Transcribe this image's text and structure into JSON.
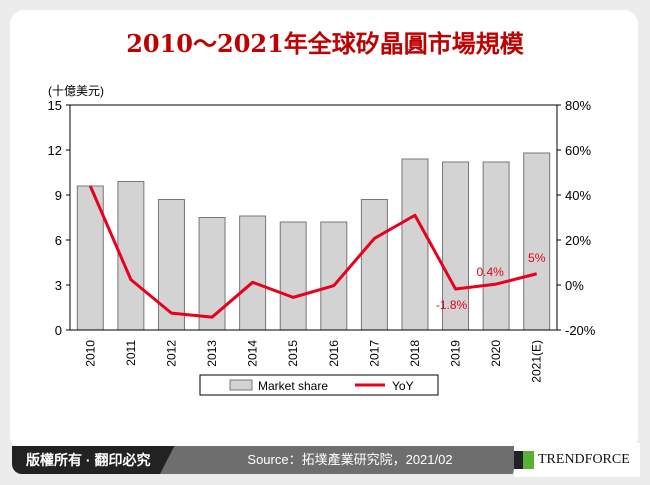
{
  "title": "2010～2021年全球矽晶圓市場規模",
  "footer": {
    "copyright": "版權所有 · 翻印必究",
    "source": "Source：拓墣產業研究院，2021/02",
    "logo": "TrendForce"
  },
  "colors": {
    "bar": "#d3d3d3",
    "line": "#e8001c",
    "title": "#c00000"
  },
  "chart_data": {
    "type": "bar+line",
    "categories": [
      "2010",
      "2011",
      "2012",
      "2013",
      "2014",
      "2015",
      "2016",
      "2017",
      "2018",
      "2019",
      "2020",
      "2021(E)"
    ],
    "y_unit_label": "(十億美元)",
    "ylim": [
      0,
      15
    ],
    "yticks": [
      0,
      3,
      6,
      9,
      12,
      15
    ],
    "y2lim": [
      -20,
      80
    ],
    "y2ticks": [
      "-20%",
      "0%",
      "20%",
      "40%",
      "60%",
      "80%"
    ],
    "series": [
      {
        "name": "Market share",
        "type": "bar",
        "axis": "left",
        "values": [
          9.6,
          9.9,
          8.7,
          7.5,
          7.6,
          7.2,
          7.2,
          8.7,
          11.4,
          11.2,
          11.2,
          11.8
        ]
      },
      {
        "name": "YoY",
        "type": "line",
        "axis": "right",
        "values": [
          44,
          2.4,
          -12.5,
          -14.3,
          1.2,
          -5.5,
          -0.3,
          20.7,
          31,
          -1.8,
          0.4,
          5
        ]
      }
    ],
    "data_labels": [
      {
        "index": 9,
        "text": "-1.8%"
      },
      {
        "index": 10,
        "text": "0.4%"
      },
      {
        "index": 11,
        "text": "5%"
      }
    ],
    "legend": "bottom",
    "grid": false
  }
}
